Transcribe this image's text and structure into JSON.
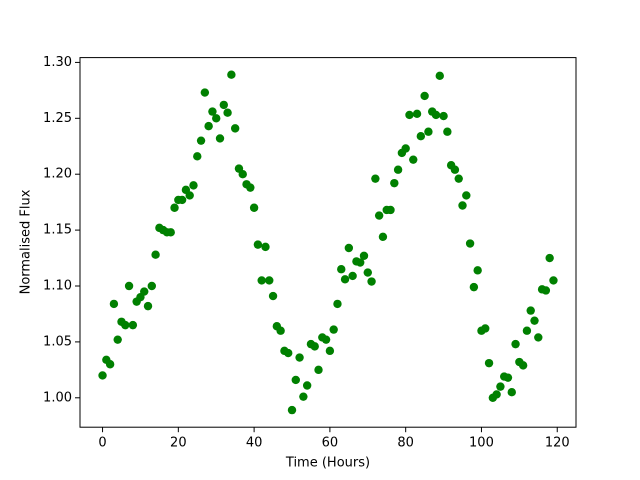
{
  "chart_data": {
    "type": "scatter",
    "xlabel": "Time (Hours)",
    "ylabel": "Normalised Flux",
    "color": "#008000",
    "x": [
      0,
      1,
      2,
      3,
      4,
      5,
      6,
      7,
      8,
      9,
      10,
      11,
      12,
      13,
      14,
      15,
      16,
      17,
      18,
      19,
      20,
      21,
      22,
      23,
      24,
      25,
      26,
      27,
      28,
      29,
      30,
      31,
      32,
      33,
      34,
      35,
      36,
      37,
      38,
      39,
      40,
      41,
      42,
      43,
      44,
      45,
      46,
      47,
      48,
      49,
      50,
      51,
      52,
      53,
      54,
      55,
      56,
      57,
      58,
      59,
      60,
      61,
      62,
      63,
      64,
      65,
      66,
      67,
      68,
      69,
      70,
      71,
      72,
      73,
      74,
      75,
      76,
      77,
      78,
      79,
      80,
      81,
      82,
      83,
      84,
      85,
      86,
      87,
      88,
      89,
      90,
      91,
      92,
      93,
      94,
      95,
      96,
      97,
      98,
      99,
      100,
      101,
      102,
      103,
      104,
      105,
      106,
      107,
      108,
      109,
      110,
      111,
      112,
      113,
      114,
      115,
      116,
      117,
      118,
      119
    ],
    "values": [
      1.02,
      1.034,
      1.03,
      1.084,
      1.052,
      1.068,
      1.065,
      1.1,
      1.065,
      1.086,
      1.09,
      1.095,
      1.082,
      1.1,
      1.128,
      1.152,
      1.15,
      1.148,
      1.148,
      1.17,
      1.177,
      1.177,
      1.186,
      1.181,
      1.19,
      1.216,
      1.23,
      1.273,
      1.243,
      1.256,
      1.25,
      1.232,
      1.262,
      1.255,
      1.289,
      1.241,
      1.205,
      1.2,
      1.191,
      1.188,
      1.17,
      1.137,
      1.105,
      1.135,
      1.105,
      1.091,
      1.064,
      1.06,
      1.042,
      1.04,
      0.989,
      1.016,
      1.036,
      1.001,
      1.011,
      1.048,
      1.046,
      1.025,
      1.054,
      1.052,
      1.042,
      1.061,
      1.084,
      1.115,
      1.106,
      1.134,
      1.109,
      1.122,
      1.121,
      1.127,
      1.112,
      1.104,
      1.196,
      1.163,
      1.144,
      1.168,
      1.168,
      1.192,
      1.204,
      1.219,
      1.223,
      1.253,
      1.213,
      1.254,
      1.234,
      1.27,
      1.238,
      1.256,
      1.253,
      1.288,
      1.252,
      1.238,
      1.208,
      1.204,
      1.196,
      1.172,
      1.181,
      1.138,
      1.099,
      1.114,
      1.06,
      1.062,
      1.031,
      1.0,
      1.003,
      1.01,
      1.019,
      1.018,
      1.005,
      1.048,
      1.032,
      1.029,
      1.06,
      1.078,
      1.069,
      1.054,
      1.097,
      1.096,
      1.125,
      1.105
    ],
    "xlim": [
      -5.95,
      124.95
    ],
    "xticks": [
      0,
      20,
      40,
      60,
      80,
      100,
      120
    ],
    "ylim": [
      0.9737,
      1.3043
    ],
    "yticks": [
      {
        "value": 1.0,
        "label": "1.00"
      },
      {
        "value": 1.05,
        "label": "1.05"
      },
      {
        "value": 1.1,
        "label": "1.10"
      },
      {
        "value": 1.15,
        "label": "1.15"
      },
      {
        "value": 1.2,
        "label": "1.20"
      },
      {
        "value": 1.25,
        "label": "1.25"
      },
      {
        "value": 1.3,
        "label": "1.30"
      }
    ]
  }
}
